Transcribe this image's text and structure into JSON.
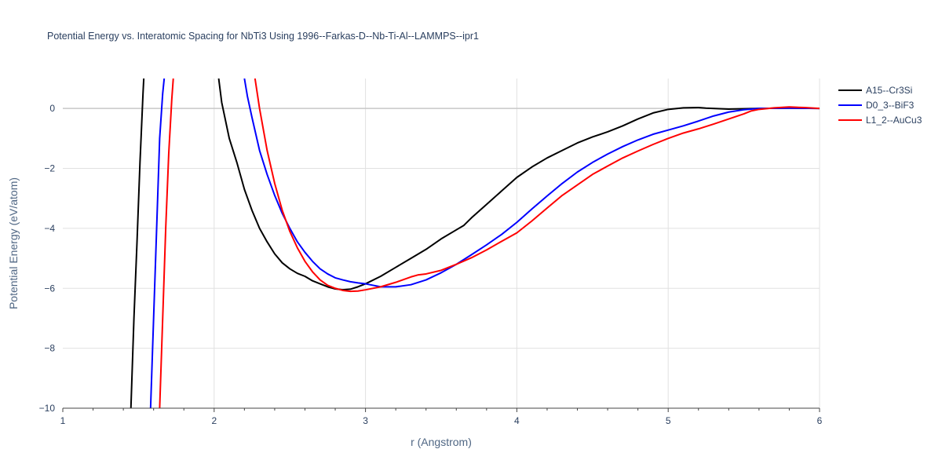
{
  "chart_data": {
    "type": "line",
    "title": "Potential Energy vs. Interatomic Spacing for NbTi3 Using 1996--Farkas-D--Nb-Ti-Al--LAMMPS--ipr1",
    "xlabel": "r (Angstrom)",
    "ylabel": "Potential Energy (eV/atom)",
    "xlim": [
      1,
      6
    ],
    "ylim": [
      -10,
      1
    ],
    "xticks": [
      1,
      2,
      3,
      4,
      5,
      6
    ],
    "yticks": [
      -10,
      -8,
      -6,
      -4,
      -2,
      0
    ],
    "xtick_labels": [
      "1",
      "2",
      "3",
      "4",
      "5",
      "6"
    ],
    "ytick_labels": [
      "−10",
      "−8",
      "−6",
      "−4",
      "−2",
      "0"
    ],
    "grid": true,
    "legend_position": "top-right",
    "series": [
      {
        "name": "A15--Cr3Si",
        "color": "#000000",
        "segments": [
          [
            [
              1.45,
              -10.0
            ],
            [
              1.47,
              -7.0
            ],
            [
              1.49,
              -4.5
            ],
            [
              1.51,
              -1.8
            ],
            [
              1.53,
              0.5
            ],
            [
              1.535,
              1.0
            ]
          ],
          [
            [
              2.03,
              1.0
            ],
            [
              2.05,
              0.2
            ],
            [
              2.1,
              -1.0
            ],
            [
              2.15,
              -1.8
            ],
            [
              2.2,
              -2.7
            ],
            [
              2.25,
              -3.4
            ],
            [
              2.3,
              -4.0
            ],
            [
              2.35,
              -4.45
            ],
            [
              2.4,
              -4.85
            ],
            [
              2.45,
              -5.15
            ],
            [
              2.5,
              -5.35
            ],
            [
              2.55,
              -5.5
            ],
            [
              2.6,
              -5.6
            ],
            [
              2.65,
              -5.75
            ],
            [
              2.7,
              -5.85
            ],
            [
              2.75,
              -5.95
            ],
            [
              2.8,
              -6.02
            ],
            [
              2.85,
              -6.05
            ],
            [
              2.9,
              -6.03
            ],
            [
              2.95,
              -5.95
            ],
            [
              3.0,
              -5.85
            ],
            [
              3.1,
              -5.6
            ],
            [
              3.2,
              -5.3
            ],
            [
              3.3,
              -5.0
            ],
            [
              3.4,
              -4.7
            ],
            [
              3.5,
              -4.35
            ],
            [
              3.6,
              -4.05
            ],
            [
              3.65,
              -3.9
            ],
            [
              3.7,
              -3.65
            ],
            [
              3.8,
              -3.2
            ],
            [
              3.9,
              -2.75
            ],
            [
              4.0,
              -2.3
            ],
            [
              4.1,
              -1.95
            ],
            [
              4.2,
              -1.65
            ],
            [
              4.3,
              -1.4
            ],
            [
              4.4,
              -1.15
            ],
            [
              4.5,
              -0.95
            ],
            [
              4.6,
              -0.78
            ],
            [
              4.7,
              -0.58
            ],
            [
              4.8,
              -0.35
            ],
            [
              4.9,
              -0.15
            ],
            [
              5.0,
              -0.03
            ],
            [
              5.1,
              0.02
            ],
            [
              5.2,
              0.03
            ],
            [
              5.25,
              0.01
            ],
            [
              5.4,
              -0.02
            ],
            [
              5.6,
              0.0
            ],
            [
              5.8,
              0.01
            ],
            [
              6.0,
              0.0
            ]
          ]
        ]
      },
      {
        "name": "D0_3--BiF3",
        "color": "#0000ff",
        "segments": [
          [
            [
              1.58,
              -10.0
            ],
            [
              1.6,
              -7.0
            ],
            [
              1.62,
              -4.0
            ],
            [
              1.64,
              -1.0
            ],
            [
              1.66,
              0.5
            ],
            [
              1.67,
              1.0
            ]
          ],
          [
            [
              2.2,
              1.0
            ],
            [
              2.22,
              0.4
            ],
            [
              2.25,
              -0.3
            ],
            [
              2.3,
              -1.4
            ],
            [
              2.35,
              -2.2
            ],
            [
              2.4,
              -2.9
            ],
            [
              2.45,
              -3.5
            ],
            [
              2.5,
              -4.0
            ],
            [
              2.55,
              -4.45
            ],
            [
              2.6,
              -4.8
            ],
            [
              2.65,
              -5.1
            ],
            [
              2.7,
              -5.35
            ],
            [
              2.75,
              -5.52
            ],
            [
              2.8,
              -5.65
            ],
            [
              2.85,
              -5.72
            ],
            [
              2.9,
              -5.78
            ],
            [
              2.95,
              -5.82
            ],
            [
              3.0,
              -5.85
            ],
            [
              3.05,
              -5.9
            ],
            [
              3.1,
              -5.95
            ],
            [
              3.2,
              -5.95
            ],
            [
              3.3,
              -5.88
            ],
            [
              3.4,
              -5.72
            ],
            [
              3.5,
              -5.48
            ],
            [
              3.6,
              -5.2
            ],
            [
              3.7,
              -4.88
            ],
            [
              3.8,
              -4.55
            ],
            [
              3.9,
              -4.2
            ],
            [
              4.0,
              -3.8
            ],
            [
              4.1,
              -3.35
            ],
            [
              4.2,
              -2.92
            ],
            [
              4.3,
              -2.5
            ],
            [
              4.4,
              -2.12
            ],
            [
              4.5,
              -1.8
            ],
            [
              4.6,
              -1.52
            ],
            [
              4.7,
              -1.27
            ],
            [
              4.8,
              -1.05
            ],
            [
              4.9,
              -0.86
            ],
            [
              5.0,
              -0.72
            ],
            [
              5.1,
              -0.58
            ],
            [
              5.2,
              -0.42
            ],
            [
              5.3,
              -0.25
            ],
            [
              5.4,
              -0.12
            ],
            [
              5.5,
              -0.04
            ],
            [
              5.6,
              0.0
            ],
            [
              5.8,
              0.01
            ],
            [
              6.0,
              0.0
            ]
          ]
        ]
      },
      {
        "name": "L1_2--AuCu3",
        "color": "#ff0000",
        "segments": [
          [
            [
              1.64,
              -10.0
            ],
            [
              1.66,
              -7.0
            ],
            [
              1.68,
              -4.0
            ],
            [
              1.7,
              -1.5
            ],
            [
              1.72,
              0.3
            ],
            [
              1.73,
              1.0
            ]
          ],
          [
            [
              2.27,
              1.0
            ],
            [
              2.3,
              0.0
            ],
            [
              2.35,
              -1.4
            ],
            [
              2.4,
              -2.5
            ],
            [
              2.45,
              -3.4
            ],
            [
              2.5,
              -4.1
            ],
            [
              2.55,
              -4.65
            ],
            [
              2.6,
              -5.1
            ],
            [
              2.65,
              -5.45
            ],
            [
              2.7,
              -5.72
            ],
            [
              2.75,
              -5.9
            ],
            [
              2.8,
              -6.0
            ],
            [
              2.85,
              -6.07
            ],
            [
              2.9,
              -6.1
            ],
            [
              2.95,
              -6.09
            ],
            [
              3.0,
              -6.05
            ],
            [
              3.1,
              -5.95
            ],
            [
              3.2,
              -5.8
            ],
            [
              3.3,
              -5.62
            ],
            [
              3.35,
              -5.55
            ],
            [
              3.4,
              -5.52
            ],
            [
              3.5,
              -5.4
            ],
            [
              3.6,
              -5.2
            ],
            [
              3.7,
              -4.98
            ],
            [
              3.8,
              -4.72
            ],
            [
              3.9,
              -4.43
            ],
            [
              4.0,
              -4.15
            ],
            [
              4.1,
              -3.75
            ],
            [
              4.2,
              -3.32
            ],
            [
              4.3,
              -2.9
            ],
            [
              4.4,
              -2.55
            ],
            [
              4.5,
              -2.2
            ],
            [
              4.6,
              -1.92
            ],
            [
              4.7,
              -1.65
            ],
            [
              4.8,
              -1.42
            ],
            [
              4.9,
              -1.2
            ],
            [
              5.0,
              -1.0
            ],
            [
              5.1,
              -0.82
            ],
            [
              5.2,
              -0.68
            ],
            [
              5.3,
              -0.52
            ],
            [
              5.4,
              -0.35
            ],
            [
              5.5,
              -0.18
            ],
            [
              5.55,
              -0.08
            ],
            [
              5.6,
              -0.03
            ],
            [
              5.7,
              0.02
            ],
            [
              5.8,
              0.05
            ],
            [
              5.9,
              0.03
            ],
            [
              6.0,
              0.0
            ]
          ]
        ]
      }
    ]
  }
}
